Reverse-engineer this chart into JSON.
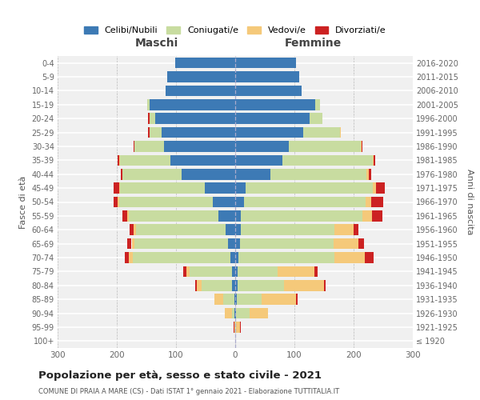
{
  "age_groups": [
    "100+",
    "95-99",
    "90-94",
    "85-89",
    "80-84",
    "75-79",
    "70-74",
    "65-69",
    "60-64",
    "55-59",
    "50-54",
    "45-49",
    "40-44",
    "35-39",
    "30-34",
    "25-29",
    "20-24",
    "15-19",
    "10-14",
    "5-9",
    "0-4"
  ],
  "birth_years": [
    "≤ 1920",
    "1921-1925",
    "1926-1930",
    "1931-1935",
    "1936-1940",
    "1941-1945",
    "1946-1950",
    "1951-1955",
    "1956-1960",
    "1961-1965",
    "1966-1970",
    "1971-1975",
    "1976-1980",
    "1981-1985",
    "1986-1990",
    "1991-1995",
    "1996-2000",
    "2001-2005",
    "2006-2010",
    "2011-2015",
    "2016-2020"
  ],
  "maschi_celibe": [
    0,
    0,
    1,
    2,
    5,
    5,
    8,
    12,
    16,
    28,
    38,
    52,
    90,
    110,
    120,
    125,
    135,
    145,
    118,
    115,
    102
  ],
  "maschi_coniugato": [
    0,
    0,
    5,
    18,
    52,
    72,
    165,
    158,
    152,
    152,
    158,
    142,
    100,
    85,
    50,
    20,
    10,
    3,
    0,
    0,
    0
  ],
  "maschi_vedovo": [
    0,
    2,
    12,
    15,
    8,
    6,
    7,
    5,
    4,
    3,
    2,
    2,
    1,
    1,
    0,
    0,
    0,
    0,
    0,
    0,
    0
  ],
  "maschi_divorziato": [
    0,
    1,
    0,
    0,
    3,
    5,
    7,
    8,
    6,
    8,
    8,
    10,
    2,
    2,
    2,
    2,
    2,
    0,
    0,
    0,
    0
  ],
  "femmine_nubile": [
    0,
    0,
    2,
    3,
    4,
    4,
    5,
    8,
    10,
    10,
    15,
    18,
    60,
    80,
    90,
    115,
    125,
    135,
    112,
    108,
    103
  ],
  "femmine_coniugata": [
    0,
    2,
    22,
    42,
    78,
    68,
    162,
    158,
    158,
    205,
    205,
    215,
    162,
    152,
    122,
    62,
    22,
    8,
    0,
    0,
    0
  ],
  "femmine_vedova": [
    0,
    6,
    32,
    58,
    68,
    62,
    52,
    42,
    32,
    16,
    10,
    5,
    3,
    2,
    1,
    1,
    0,
    0,
    0,
    0,
    0
  ],
  "femmine_divorziata": [
    0,
    1,
    0,
    2,
    3,
    5,
    15,
    10,
    8,
    18,
    20,
    15,
    5,
    2,
    2,
    1,
    0,
    0,
    0,
    0,
    0
  ],
  "colors": {
    "celibe": "#3d7ab5",
    "coniugato": "#c8dca0",
    "vedovo": "#f5c97a",
    "divorziato": "#cc2222"
  },
  "legend_labels": [
    "Celibi/Nubili",
    "Coniugati/e",
    "Vedovi/e",
    "Divorziati/e"
  ],
  "title": "Popolazione per età, sesso e stato civile - 2021",
  "subtitle": "COMUNE DI PRAIA A MARE (CS) - Dati ISTAT 1° gennaio 2021 - Elaborazione TUTTITALIA.IT",
  "ylabel_left": "Fasce di età",
  "ylabel_right": "Anni di nascita",
  "label_maschi": "Maschi",
  "label_femmine": "Femmine",
  "xlim": 300,
  "background_color": "#ffffff",
  "plot_bg": "#f0f0f0"
}
